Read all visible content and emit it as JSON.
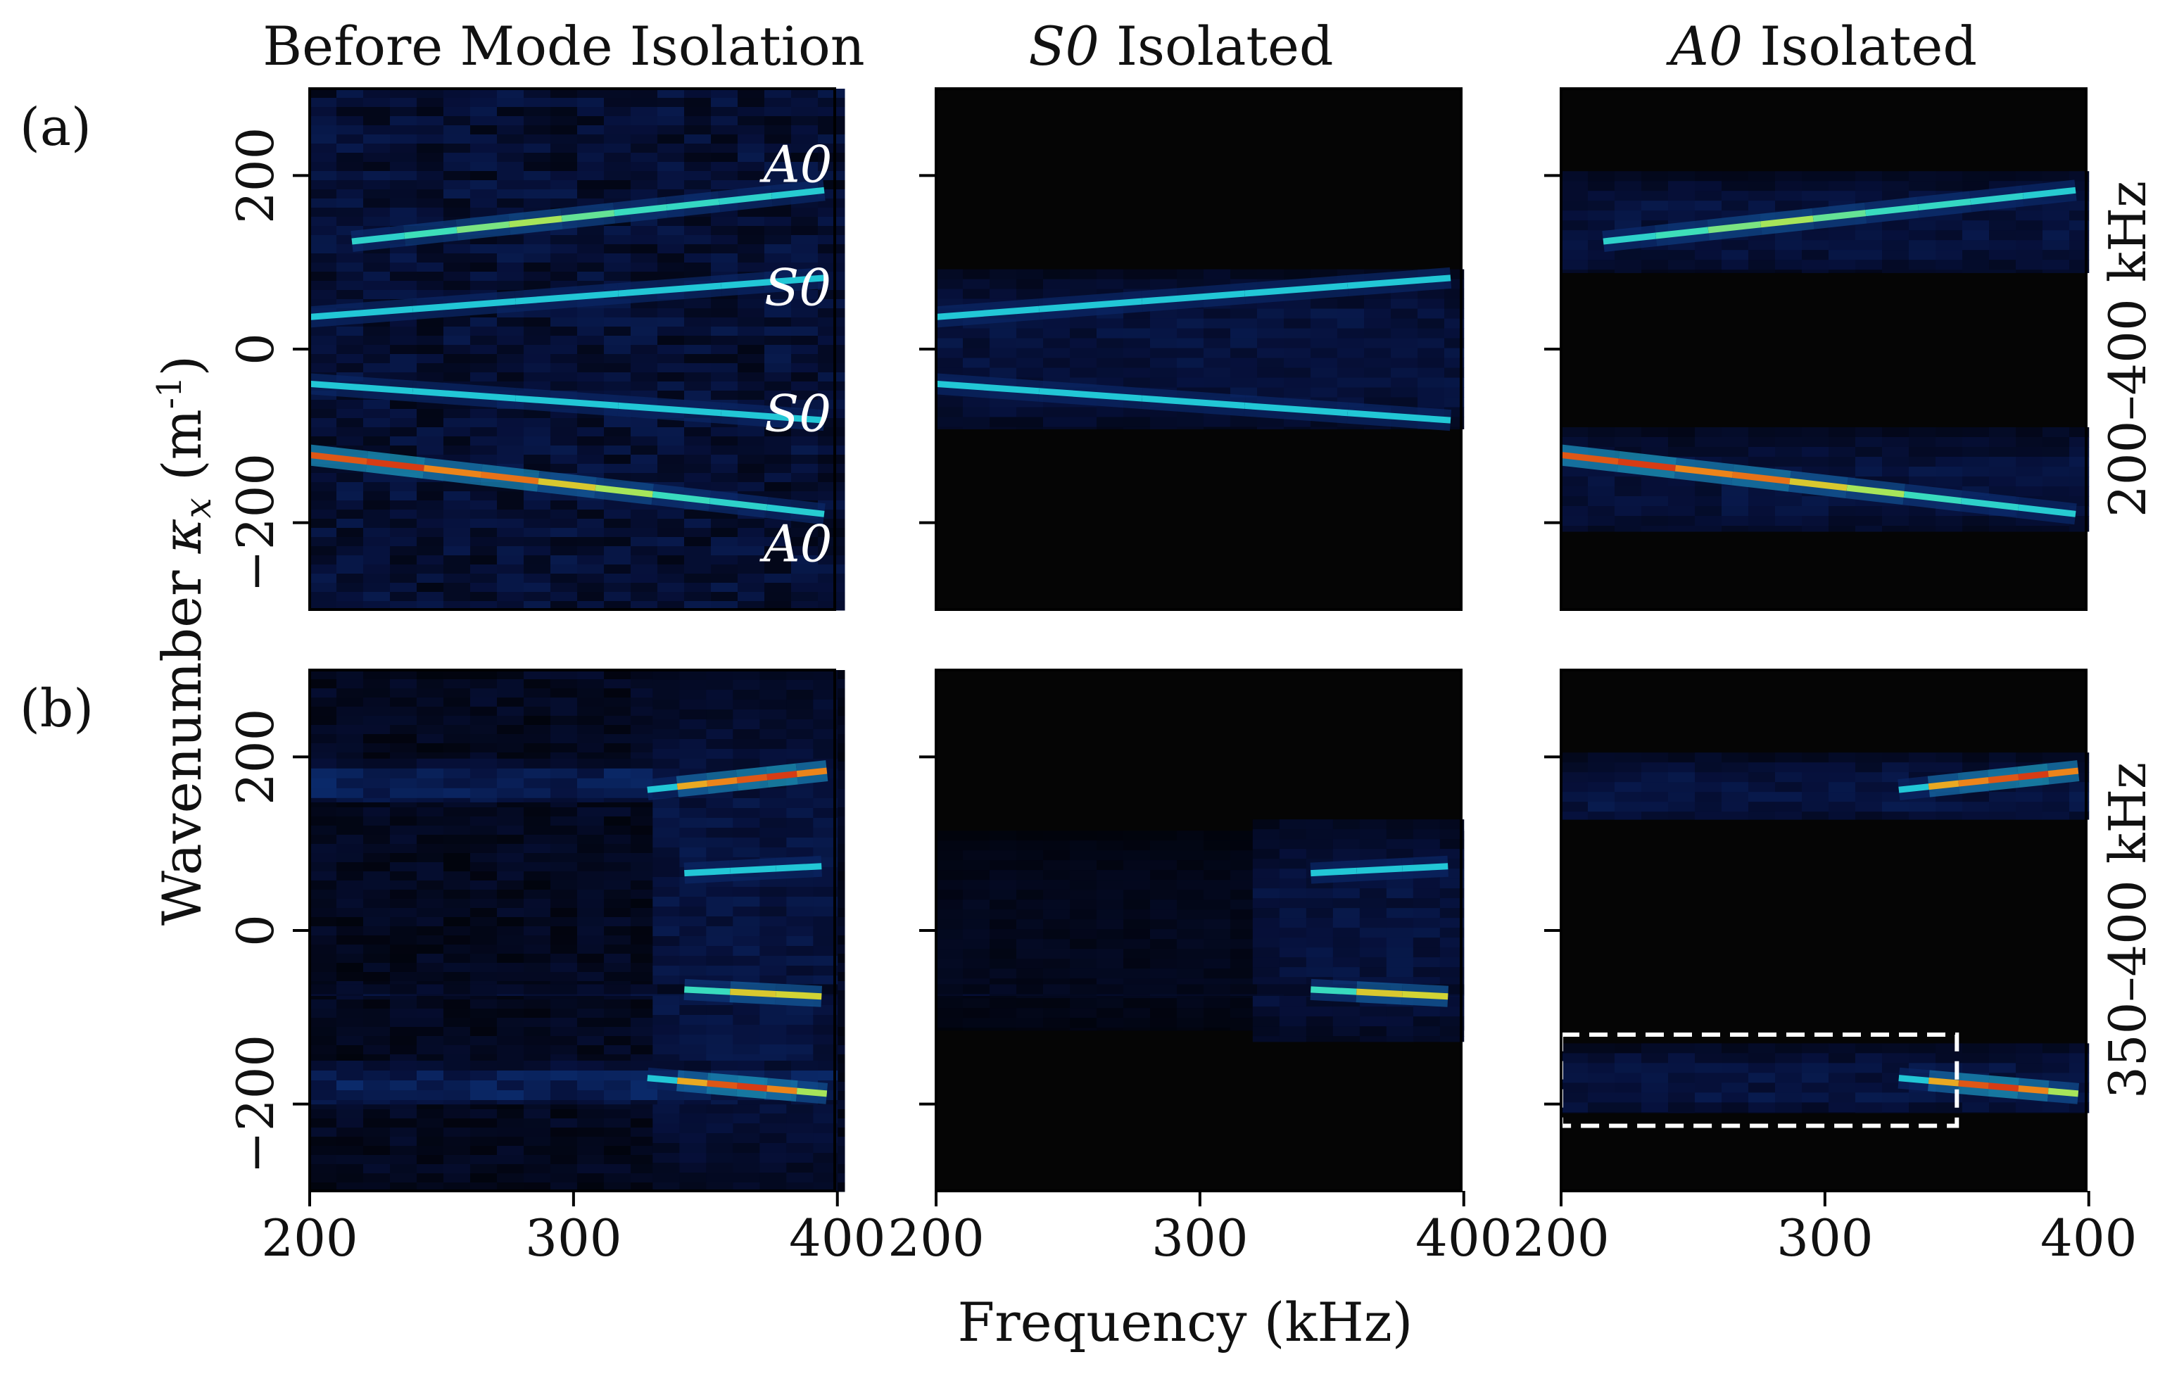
{
  "chart_data": {
    "type": "heatmap",
    "xlabel": "Frequency (kHz)",
    "ylabel": "Wavenumber κ_x (m⁻¹)",
    "ylabel_parts": {
      "text": "Wavenumber ",
      "symbol": "κ",
      "sub": "x",
      "unit_open": " (m",
      "sup": "-1",
      "unit_close": ")"
    },
    "xlim": [
      200,
      400
    ],
    "ylim": [
      -300,
      300
    ],
    "xticks": [
      200,
      300,
      400
    ],
    "yticks": [
      200,
      0,
      -200
    ],
    "ytick_labels": [
      "200",
      "0",
      "−200"
    ],
    "column_titles": [
      {
        "italic": "",
        "text": "Before Mode Isolation"
      },
      {
        "italic": "S0",
        "text": " Isolated"
      },
      {
        "italic": "A0",
        "text": " Isolated"
      }
    ],
    "row_tags": [
      "(a)",
      "(b)"
    ],
    "row_side_labels": [
      "200–400 kHz",
      "350–400 kHz"
    ],
    "mode_labels": [
      {
        "text": "A0",
        "f": 385,
        "k": 212
      },
      {
        "text": "S0",
        "f": 385,
        "k": 70
      },
      {
        "text": "S0",
        "f": 385,
        "k": -75
      },
      {
        "text": "A0",
        "f": 385,
        "k": -225
      }
    ],
    "colormap": [
      "#000000",
      "#06103a",
      "#0b2c6e",
      "#1565a5",
      "#22c7d6",
      "#3fe0b8",
      "#c8e63c",
      "#f39a1c",
      "#d22a12"
    ],
    "panels": [
      {
        "row": 0,
        "col": 0,
        "background": {
          "f0": 200,
          "f1": 400,
          "k0": -300,
          "k1": 300,
          "level": 0.13
        },
        "bands": [],
        "branches": [
          {
            "f0": 216,
            "k0": 124,
            "f1": 395,
            "k1": 183,
            "levels": [
              0.55,
              0.62,
              0.68,
              0.72,
              0.66,
              0.6,
              0.58,
              0.55,
              0.52
            ]
          },
          {
            "f0": 200,
            "k0": 37,
            "f1": 395,
            "k1": 82,
            "levels": [
              0.5,
              0.5,
              0.5,
              0.5,
              0.5
            ]
          },
          {
            "f0": 200,
            "k0": -40,
            "f1": 395,
            "k1": -82,
            "levels": [
              0.5,
              0.5,
              0.5,
              0.5,
              0.5
            ]
          },
          {
            "f0": 200,
            "k0": -122,
            "f1": 395,
            "k1": -190,
            "levels": [
              0.95,
              0.98,
              0.9,
              0.92,
              0.8,
              0.72,
              0.6,
              0.55,
              0.52
            ]
          }
        ]
      },
      {
        "row": 0,
        "col": 1,
        "background": null,
        "bands": [
          {
            "f0": 200,
            "f1": 400,
            "k0": -92,
            "k1": 92,
            "level": 0.15
          }
        ],
        "branches": [
          {
            "f0": 200,
            "k0": 37,
            "f1": 395,
            "k1": 82,
            "levels": [
              0.5,
              0.5,
              0.5,
              0.5,
              0.5
            ]
          },
          {
            "f0": 200,
            "k0": -40,
            "f1": 395,
            "k1": -82,
            "levels": [
              0.5,
              0.5,
              0.5,
              0.5,
              0.5
            ]
          }
        ]
      },
      {
        "row": 0,
        "col": 2,
        "background": null,
        "bands": [
          {
            "f0": 200,
            "f1": 400,
            "k0": 88,
            "k1": 205,
            "level": 0.15
          },
          {
            "f0": 200,
            "f1": 400,
            "k0": -210,
            "k1": -90,
            "level": 0.15
          }
        ],
        "branches": [
          {
            "f0": 216,
            "k0": 124,
            "f1": 395,
            "k1": 183,
            "levels": [
              0.55,
              0.62,
              0.68,
              0.72,
              0.66,
              0.6,
              0.58,
              0.55,
              0.52
            ]
          },
          {
            "f0": 200,
            "k0": -122,
            "f1": 395,
            "k1": -190,
            "levels": [
              0.95,
              0.98,
              0.9,
              0.92,
              0.8,
              0.72,
              0.6,
              0.55,
              0.52
            ]
          }
        ]
      },
      {
        "row": 1,
        "col": 0,
        "background": {
          "f0": 200,
          "f1": 400,
          "k0": -300,
          "k1": 300,
          "level": 0.08
        },
        "bands": [
          {
            "f0": 200,
            "f1": 400,
            "k0": 148,
            "k1": 198,
            "level": 0.22
          },
          {
            "f0": 330,
            "f1": 400,
            "k0": -300,
            "k1": 300,
            "level": 0.16
          },
          {
            "f0": 200,
            "f1": 400,
            "k0": -200,
            "k1": -150,
            "level": 0.22
          },
          {
            "f0": 200,
            "f1": 400,
            "k0": -75,
            "k1": -62,
            "level": 0.18
          }
        ],
        "branches": [
          {
            "f0": 328,
            "k0": 162,
            "f1": 396,
            "k1": 184,
            "levels": [
              0.5,
              0.85,
              0.9,
              0.95,
              0.98,
              0.9
            ]
          },
          {
            "f0": 342,
            "k0": 66,
            "f1": 394,
            "k1": 74,
            "levels": [
              0.5,
              0.5,
              0.5
            ]
          },
          {
            "f0": 342,
            "k0": -68,
            "f1": 394,
            "k1": -76,
            "levels": [
              0.6,
              0.8,
              0.78
            ]
          },
          {
            "f0": 328,
            "k0": -170,
            "f1": 396,
            "k1": -188,
            "levels": [
              0.5,
              0.85,
              0.95,
              0.98,
              0.9,
              0.72
            ]
          }
        ]
      },
      {
        "row": 1,
        "col": 1,
        "background": null,
        "bands": [
          {
            "f0": 200,
            "f1": 400,
            "k0": -115,
            "k1": 115,
            "level": 0.07
          },
          {
            "f0": 320,
            "f1": 400,
            "k0": -128,
            "k1": 128,
            "level": 0.15
          },
          {
            "f0": 200,
            "f1": 400,
            "k0": -75,
            "k1": -62,
            "level": 0.14
          }
        ],
        "branches": [
          {
            "f0": 342,
            "k0": 66,
            "f1": 394,
            "k1": 74,
            "levels": [
              0.5,
              0.5,
              0.5
            ]
          },
          {
            "f0": 342,
            "k0": -68,
            "f1": 394,
            "k1": -76,
            "levels": [
              0.6,
              0.8,
              0.78
            ]
          }
        ]
      },
      {
        "row": 1,
        "col": 2,
        "background": null,
        "bands": [
          {
            "f0": 200,
            "f1": 400,
            "k0": 128,
            "k1": 205,
            "level": 0.16
          },
          {
            "f0": 200,
            "f1": 400,
            "k0": -210,
            "k1": -130,
            "level": 0.16
          }
        ],
        "branches": [
          {
            "f0": 328,
            "k0": 162,
            "f1": 396,
            "k1": 184,
            "levels": [
              0.5,
              0.85,
              0.9,
              0.95,
              0.98,
              0.9
            ]
          },
          {
            "f0": 328,
            "k0": -170,
            "f1": 396,
            "k1": -188,
            "levels": [
              0.5,
              0.85,
              0.95,
              0.98,
              0.9,
              0.72
            ]
          }
        ],
        "box": {
          "f0": 200,
          "f1": 350,
          "k0": -225,
          "k1": -120
        }
      }
    ]
  }
}
